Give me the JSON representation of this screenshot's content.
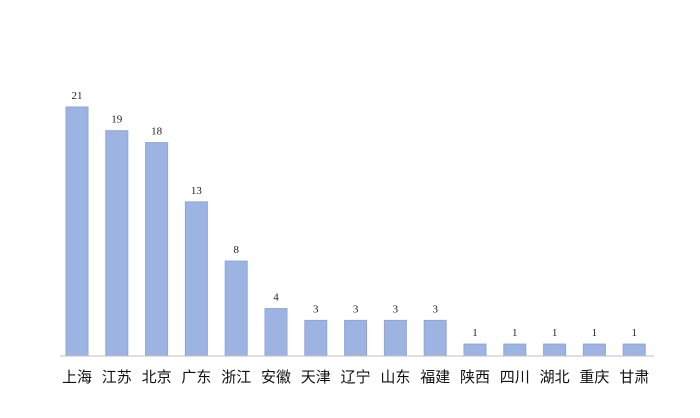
{
  "chart_data": {
    "type": "bar",
    "categories": [
      "上海",
      "江苏",
      "北京",
      "广东",
      "浙江",
      "安徽",
      "天津",
      "辽宁",
      "山东",
      "福建",
      "陕西",
      "四川",
      "湖北",
      "重庆",
      "甘肃"
    ],
    "values": [
      21,
      19,
      18,
      13,
      8,
      4,
      3,
      3,
      3,
      3,
      1,
      1,
      1,
      1,
      1
    ],
    "data_labels": [
      "21",
      "19",
      "18",
      "13",
      "8",
      "4",
      "3",
      "3",
      "3",
      "3",
      "1",
      "1",
      "1",
      "1",
      "1"
    ],
    "title": "",
    "xlabel": "",
    "ylabel": "",
    "ylim": [
      0,
      21
    ],
    "grid": false,
    "legend": "none",
    "bar_color": "#9db4e3"
  }
}
